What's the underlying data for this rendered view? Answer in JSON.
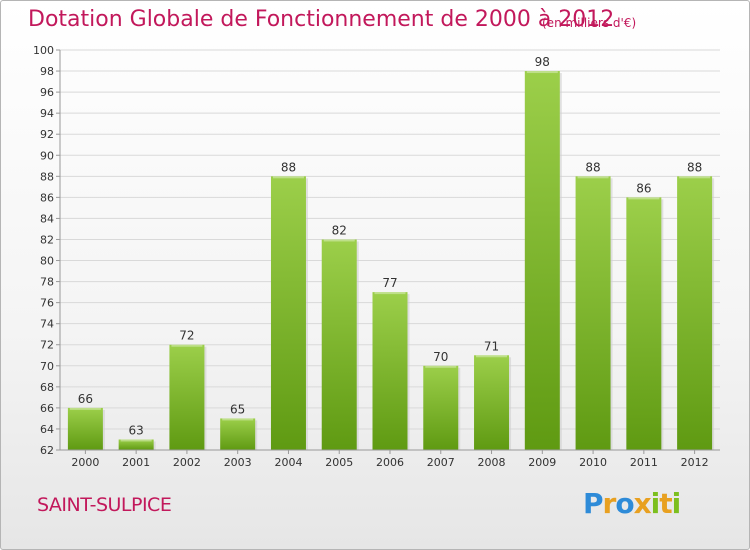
{
  "title": "Dotation Globale de Fonctionnement de 2000 à 2012",
  "unit_note": "(en milliers d'€)",
  "place": "SAINT-SULPICE",
  "logo": {
    "letters": [
      "P",
      "r",
      "o",
      "x",
      "i",
      "t",
      "i"
    ],
    "colors": [
      "#2e8bd8",
      "#e8a020",
      "#2e8bd8",
      "#e8a020",
      "#7cbf1e",
      "#e8a020",
      "#7cbf1e"
    ]
  },
  "colors": {
    "bar_top": "#9ccf4a",
    "bar_bottom": "#5f9a12",
    "title": "#c2185b",
    "grid": "#d9d9d9"
  },
  "chart_data": {
    "type": "bar",
    "title": "Dotation Globale de Fonctionnement de 2000 à 2012",
    "categories": [
      "2000",
      "2001",
      "2002",
      "2003",
      "2004",
      "2005",
      "2006",
      "2007",
      "2008",
      "2009",
      "2010",
      "2011",
      "2012"
    ],
    "values": [
      66,
      63,
      72,
      65,
      88,
      82,
      77,
      70,
      71,
      98,
      88,
      86,
      88
    ],
    "ylim": [
      62,
      100
    ],
    "yticks": [
      62,
      64,
      66,
      68,
      70,
      72,
      74,
      76,
      78,
      80,
      82,
      84,
      86,
      88,
      90,
      92,
      94,
      96,
      98,
      100
    ],
    "grid": true,
    "data_labels": true
  }
}
